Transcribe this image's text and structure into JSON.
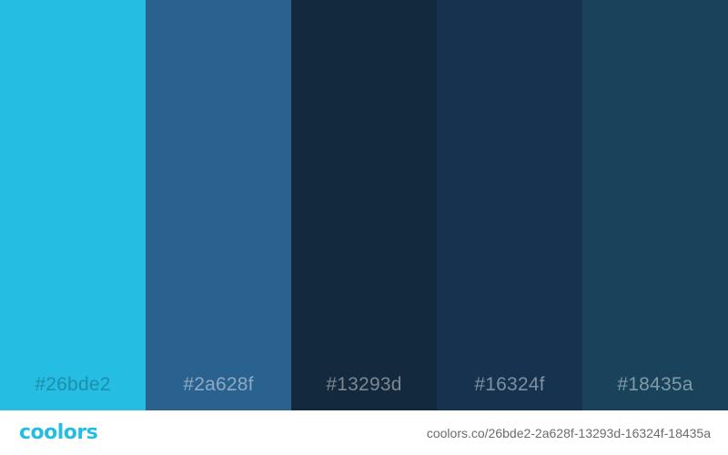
{
  "palette": {
    "swatches": [
      {
        "hex": "#26bde2",
        "label": "#26bde2",
        "label_color": "#1d8eab"
      },
      {
        "hex": "#2a628f",
        "label": "#2a628f",
        "label_color": "#8fa9c2"
      },
      {
        "hex": "#13293d",
        "label": "#13293d",
        "label_color": "#7d8792"
      },
      {
        "hex": "#16324f",
        "label": "#16324f",
        "label_color": "#7f8fa0"
      },
      {
        "hex": "#18435a",
        "label": "#18435a",
        "label_color": "#8299a6"
      }
    ]
  },
  "footer": {
    "logo_text": "coolors",
    "logo_color": "#26bde2",
    "url_text": "coolors.co/26bde2-2a628f-13293d-16324f-18435a"
  }
}
